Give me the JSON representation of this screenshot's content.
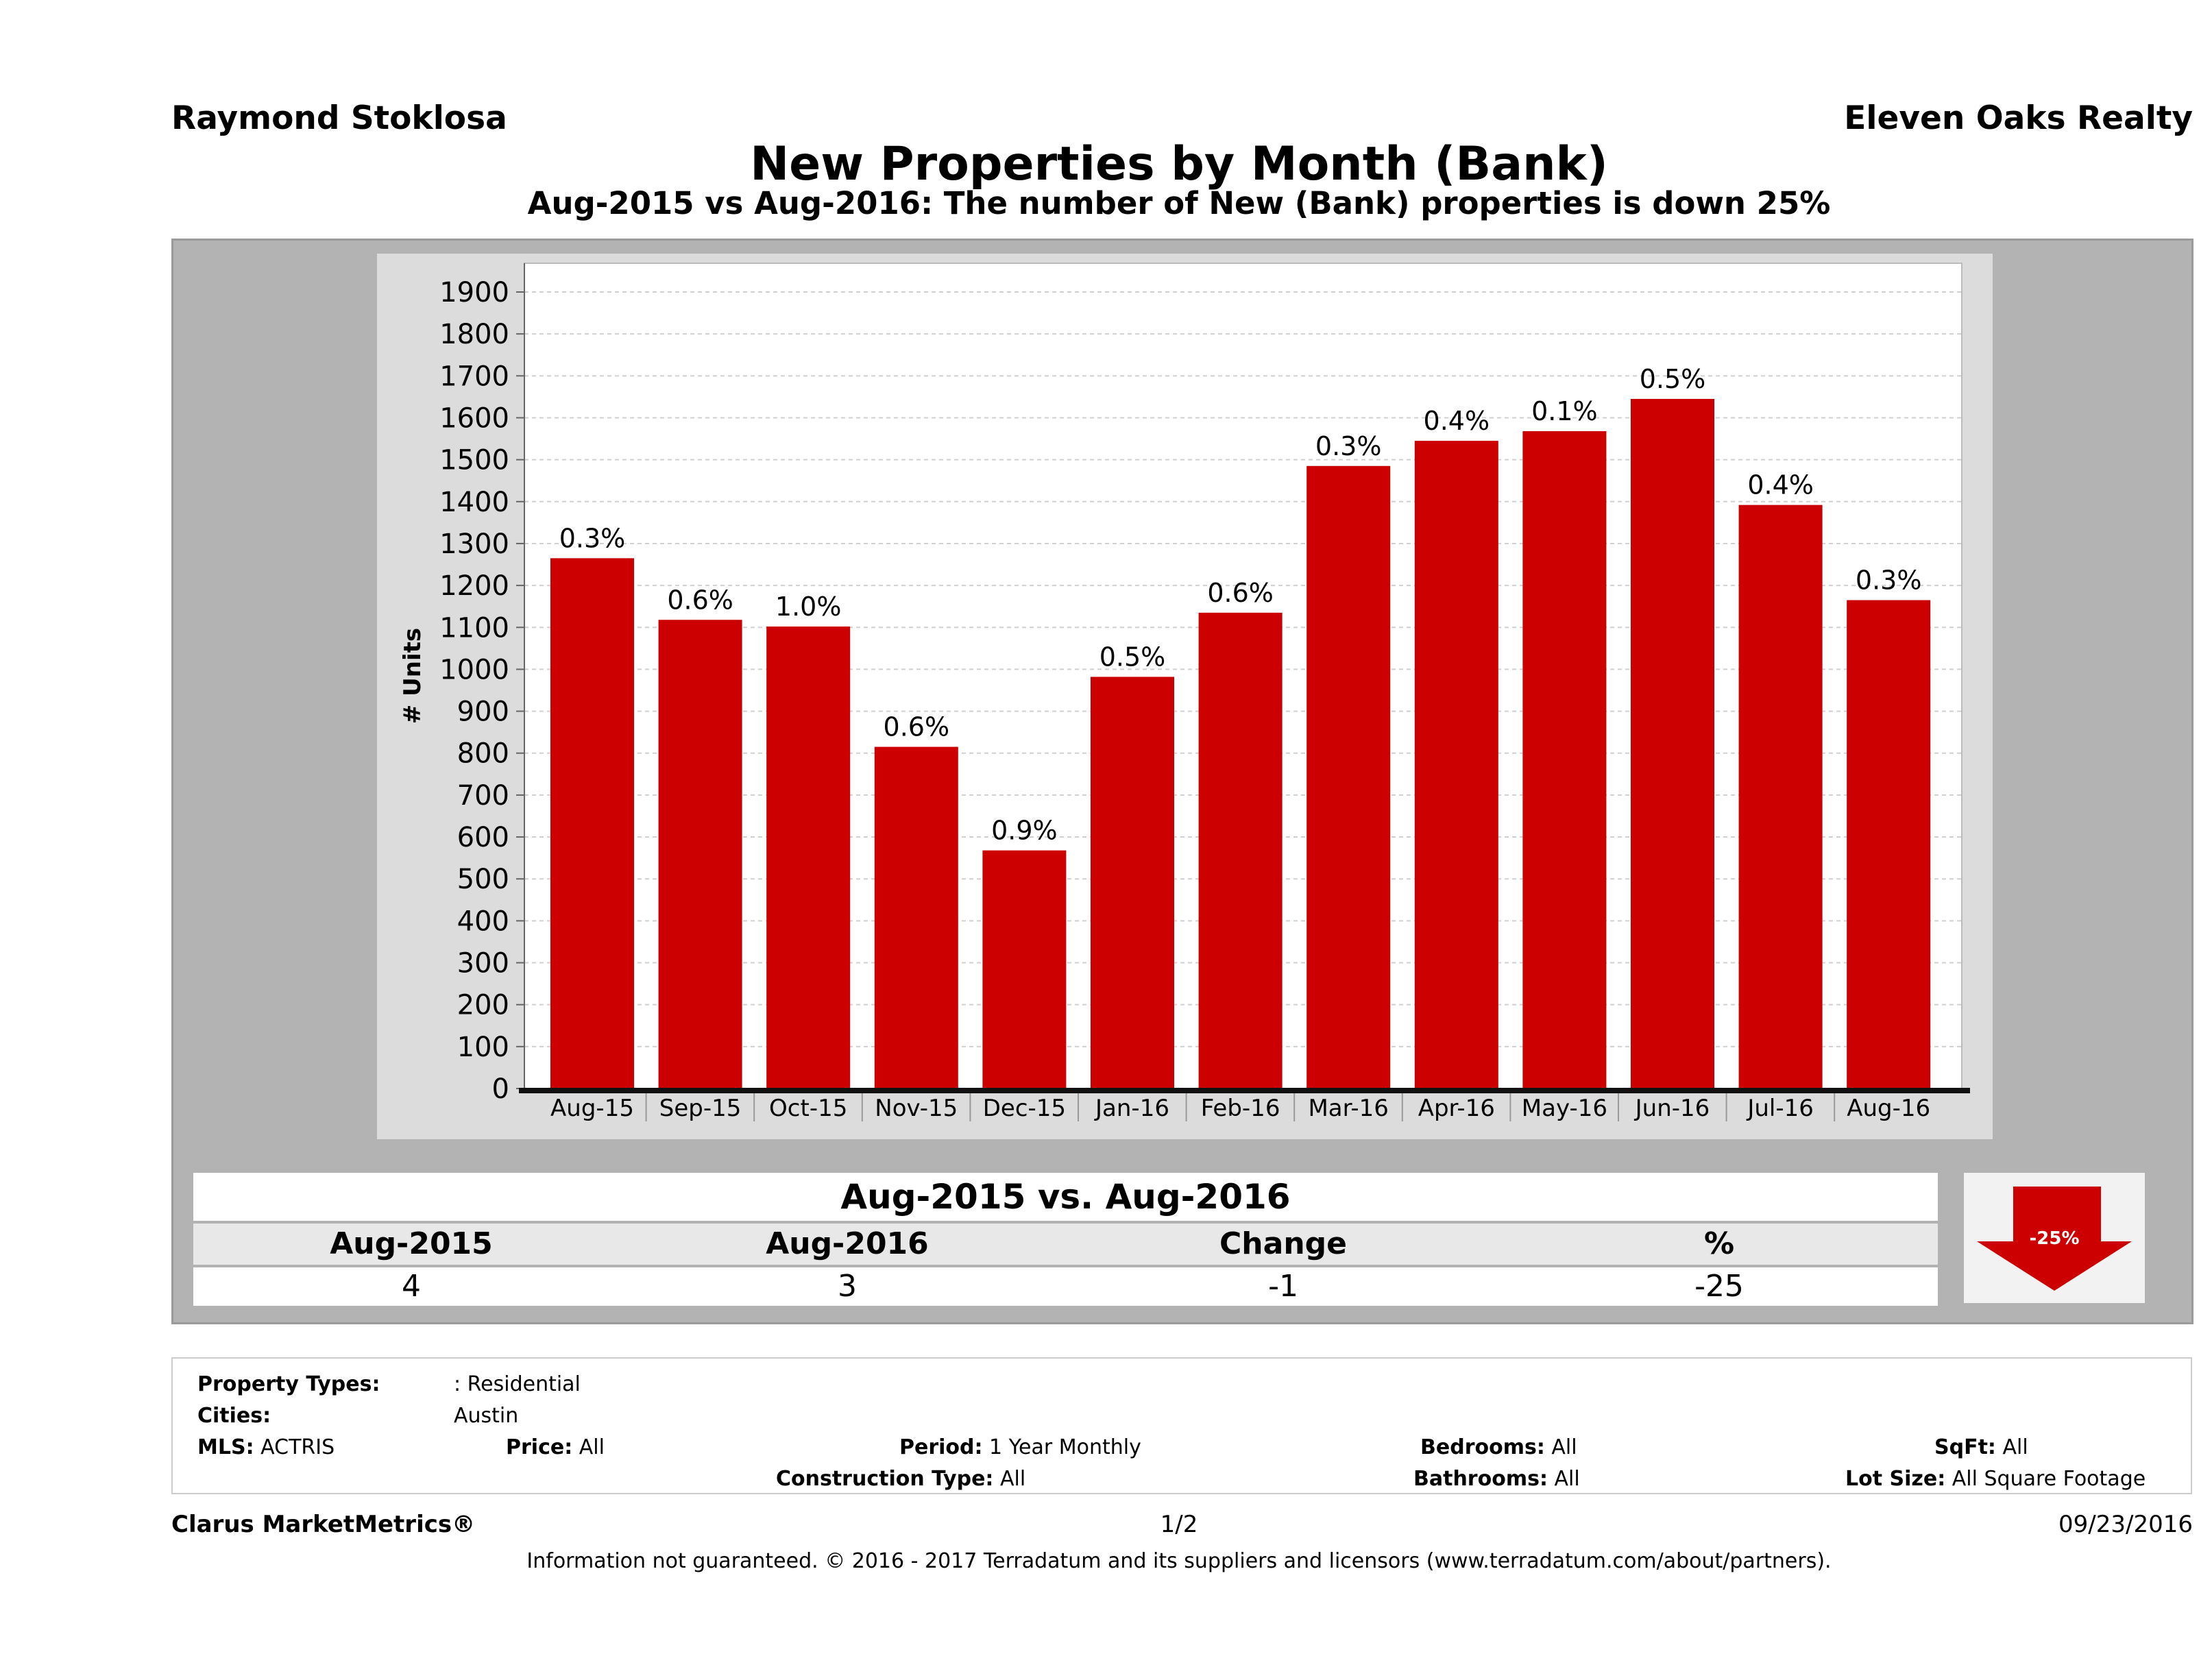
{
  "header": {
    "agent": "Raymond Stoklosa",
    "brokerage": "Eleven Oaks Realty",
    "title": "New Properties by Month (Bank)",
    "subtitle": "Aug-2015 vs Aug-2016: The number of New (Bank)  properties is down 25%"
  },
  "chart_data": {
    "type": "bar",
    "categories": [
      "Aug-15",
      "Sep-15",
      "Oct-15",
      "Nov-15",
      "Dec-15",
      "Jan-16",
      "Feb-16",
      "Mar-16",
      "Apr-16",
      "May-16",
      "Jun-16",
      "Jul-16",
      "Aug-16"
    ],
    "series": [
      {
        "values": [
          1265,
          1118,
          1102,
          815,
          568,
          982,
          1135,
          1485,
          1545,
          1568,
          1645,
          1392,
          1165
        ],
        "labels": [
          "0.3%",
          "0.6%",
          "1.0%",
          "0.6%",
          "0.9%",
          "0.5%",
          "0.6%",
          "0.3%",
          "0.4%",
          "0.1%",
          "0.5%",
          "0.4%",
          "0.3%"
        ]
      }
    ],
    "ylabel": "# Units",
    "xlabel": "",
    "ylim": [
      0,
      1900
    ],
    "yticks": [
      0,
      100,
      200,
      300,
      400,
      500,
      600,
      700,
      800,
      900,
      1000,
      1100,
      1200,
      1300,
      1400,
      1500,
      1600,
      1700,
      1800,
      1900
    ],
    "grid": true,
    "bar_color": "#cc0000"
  },
  "comparison": {
    "header": "Aug-2015 vs. Aug-2016",
    "columns": [
      "Aug-2015",
      "Aug-2016",
      "Change",
      "%"
    ],
    "values": [
      "4",
      "3",
      "-1",
      "-25"
    ],
    "badge": "-25%",
    "badge_color": "#cc0000"
  },
  "filters": {
    "property_types_label": "Property Types:",
    "property_types_value": ": Residential",
    "cities_label": "Cities:",
    "cities_value": "Austin",
    "mls_label": "MLS:",
    "mls_value": "ACTRIS",
    "price_label": "Price:",
    "price_value": "All",
    "period_label": "Period:",
    "period_value": "1 Year Monthly",
    "construction_label": "Construction Type:",
    "construction_value": "All",
    "bedrooms_label": "Bedrooms:",
    "bedrooms_value": "All",
    "bathrooms_label": "Bathrooms:",
    "bathrooms_value": "All",
    "sqft_label": "SqFt:",
    "sqft_value": "All",
    "lotsize_label": "Lot Size:",
    "lotsize_value": "All Square Footage"
  },
  "footer": {
    "brand": "Clarus MarketMetrics®",
    "page": "1/2",
    "date": "09/23/2016",
    "disclaimer": "Information not guaranteed. © 2016 - 2017 Terradatum and its suppliers and licensors (www.terradatum.com/about/partners)."
  }
}
